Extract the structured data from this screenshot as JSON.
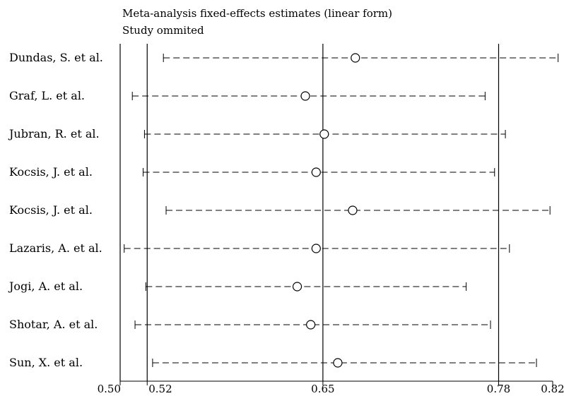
{
  "chart_data": {
    "type": "forest",
    "title": "Meta-analysis fixed-effects estimates (linear form)",
    "subtitle": "Study ommited",
    "xlabel": "",
    "ylabel": "",
    "xlim": [
      0.5,
      0.82
    ],
    "ticks": [
      0.5,
      0.52,
      0.65,
      0.78,
      0.82
    ],
    "tick_labels": [
      "0.50",
      "0.52",
      "0.65",
      "0.78",
      "0.82"
    ],
    "reference_lines": [
      0.5,
      0.52,
      0.65,
      0.78
    ],
    "studies": [
      {
        "label": "Dundas, S. et al.",
        "estimate": 0.674,
        "lower": 0.532,
        "upper": 0.824
      },
      {
        "label": "Graf, L. et al.",
        "estimate": 0.637,
        "lower": 0.509,
        "upper": 0.77
      },
      {
        "label": "Jubran, R. et al.",
        "estimate": 0.651,
        "lower": 0.518,
        "upper": 0.785
      },
      {
        "label": "Kocsis, J. et al.",
        "estimate": 0.645,
        "lower": 0.517,
        "upper": 0.777
      },
      {
        "label": "Kocsis, J. et al.",
        "estimate": 0.672,
        "lower": 0.534,
        "upper": 0.818
      },
      {
        "label": "Lazaris, A. et al.",
        "estimate": 0.645,
        "lower": 0.503,
        "upper": 0.788
      },
      {
        "label": "Jogi, A. et al.",
        "estimate": 0.631,
        "lower": 0.519,
        "upper": 0.756
      },
      {
        "label": "Shotar, A. et al.",
        "estimate": 0.641,
        "lower": 0.511,
        "upper": 0.774
      },
      {
        "label": "Sun, X. et al.",
        "estimate": 0.661,
        "lower": 0.524,
        "upper": 0.808
      }
    ]
  }
}
